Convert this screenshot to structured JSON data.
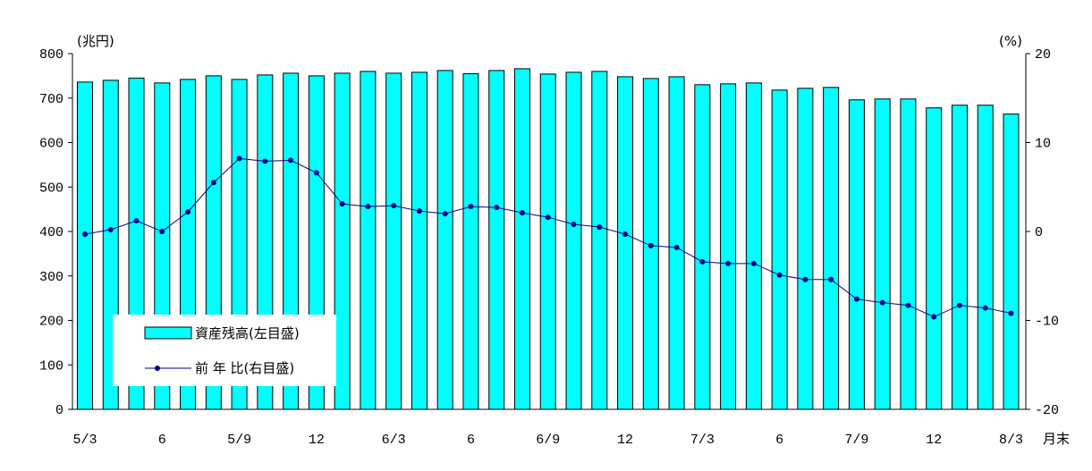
{
  "chart_data": {
    "type": "bar+line",
    "left_unit": "(兆円)",
    "right_unit": "(%)",
    "x_unit": "月末",
    "left_ylim": [
      0,
      800
    ],
    "left_yticks": [
      0,
      100,
      200,
      300,
      400,
      500,
      600,
      700,
      800
    ],
    "right_ylim": [
      -20,
      20
    ],
    "right_yticks": [
      -20,
      -10,
      0,
      10,
      20
    ],
    "x_tick_labels": [
      "5/3",
      "6",
      "5/9",
      "12",
      "6/3",
      "6",
      "6/9",
      "12",
      "7/3",
      "6",
      "7/9",
      "12",
      "8/3"
    ],
    "x_tick_label_every": 3,
    "grid": false,
    "legend_position": "bottom-left",
    "series": [
      {
        "name": "資産残高(左目盛)",
        "type": "bar",
        "axis": "left",
        "color": "#00ffff",
        "values": [
          736,
          740,
          745,
          734,
          742,
          750,
          742,
          752,
          756,
          750,
          756,
          760,
          756,
          758,
          762,
          755,
          762,
          766,
          754,
          758,
          760,
          748,
          744,
          748,
          730,
          732,
          734,
          718,
          722,
          724,
          696,
          698,
          698,
          678,
          684,
          684,
          664
        ]
      },
      {
        "name": "前 年 比(右目盛)",
        "type": "line",
        "axis": "right",
        "color": "#00008b",
        "values": [
          -0.3,
          0.2,
          1.2,
          0.0,
          2.2,
          5.5,
          8.2,
          7.9,
          8.0,
          6.6,
          3.1,
          2.8,
          2.9,
          2.3,
          2.0,
          2.8,
          2.7,
          2.1,
          1.6,
          0.8,
          0.5,
          -0.3,
          -1.6,
          -1.8,
          -3.4,
          -3.6,
          -3.6,
          -4.9,
          -5.4,
          -5.4,
          -7.6,
          -8.0,
          -8.3,
          -9.6,
          -8.3,
          -8.6,
          -9.2
        ]
      }
    ]
  }
}
